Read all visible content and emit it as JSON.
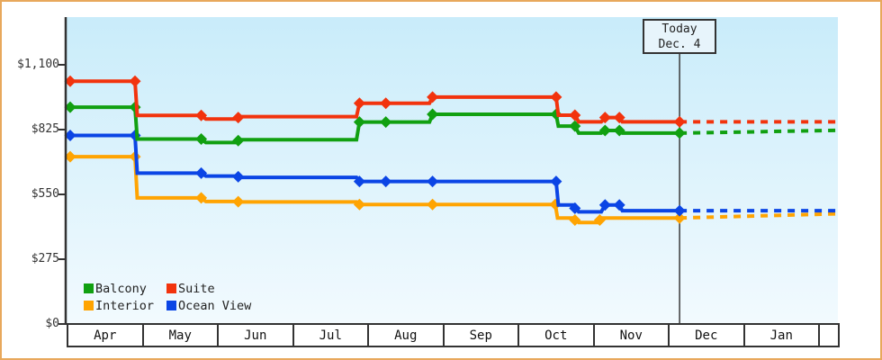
{
  "frame": {
    "border_color": "#E8A85C",
    "background": "#ffffff"
  },
  "today_box": {
    "line1": "Today",
    "line2": "Dec. 4"
  },
  "legend": {
    "items": [
      {
        "label": "Balcony",
        "color": "#11A011"
      },
      {
        "label": "Suite",
        "color": "#F2330D"
      },
      {
        "label": "Interior",
        "color": "#FFA402"
      },
      {
        "label": "Ocean View",
        "color": "#0B45E5"
      }
    ]
  },
  "chart_data": {
    "type": "line",
    "title": "",
    "x_unit": "months, 0 = start of Apr, 10 = end of Jan",
    "x_axis": {
      "months": [
        "Apr",
        "May",
        "Jun",
        "Jul",
        "Aug",
        "Sep",
        "Oct",
        "Nov",
        "Dec",
        "Jan"
      ]
    },
    "y_axis": {
      "range": [
        0,
        1100
      ],
      "ticks": [
        {
          "value": 0,
          "label": "$0"
        },
        {
          "value": 275,
          "label": "$275"
        },
        {
          "value": 550,
          "label": "$550"
        },
        {
          "value": 825,
          "label": "$825"
        },
        {
          "value": 1100,
          "label": "$1,100"
        }
      ]
    },
    "plot_background": {
      "top": "#c9ecfa",
      "bottom": "#f2fafe"
    },
    "axis_color": "#333333",
    "today_marker": {
      "label": "Today",
      "date": "Dec. 4",
      "month_position": 8.09,
      "line_color": "#3a3a3a"
    },
    "series": [
      {
        "name": "Interior",
        "color": "#FFA402",
        "points": [
          [
            0,
            710
          ],
          [
            0.86,
            710
          ],
          [
            0.89,
            535
          ],
          [
            1.74,
            535
          ],
          [
            1.8,
            520
          ],
          [
            2.23,
            520
          ],
          [
            2.26,
            518
          ],
          [
            3.8,
            518
          ],
          [
            3.84,
            507
          ],
          [
            6.44,
            507
          ],
          [
            6.47,
            450
          ],
          [
            6.7,
            450
          ],
          [
            6.75,
            431
          ],
          [
            7.03,
            431
          ],
          [
            7.06,
            450
          ],
          [
            8.09,
            450
          ]
        ],
        "markers": [
          [
            0,
            710
          ],
          [
            0.86,
            710
          ],
          [
            1.74,
            535
          ],
          [
            2.23,
            519
          ],
          [
            3.84,
            507
          ],
          [
            4.81,
            507
          ],
          [
            6.44,
            507
          ],
          [
            6.7,
            441
          ],
          [
            7.03,
            441
          ],
          [
            8.09,
            450
          ]
        ],
        "dash": [
          [
            8.09,
            450
          ],
          [
            10.2,
            468
          ]
        ]
      },
      {
        "name": "Ocean View",
        "color": "#0B45E5",
        "points": [
          [
            0,
            800
          ],
          [
            0.86,
            800
          ],
          [
            0.89,
            640
          ],
          [
            1.74,
            640
          ],
          [
            1.8,
            628
          ],
          [
            2.23,
            628
          ],
          [
            2.26,
            622
          ],
          [
            3.8,
            622
          ],
          [
            3.84,
            605
          ],
          [
            6.45,
            605
          ],
          [
            6.48,
            505
          ],
          [
            6.7,
            505
          ],
          [
            6.75,
            476
          ],
          [
            7.05,
            476
          ],
          [
            7.1,
            505
          ],
          [
            7.29,
            505
          ],
          [
            7.33,
            481
          ],
          [
            8.09,
            481
          ]
        ],
        "markers": [
          [
            0,
            800
          ],
          [
            0.86,
            800
          ],
          [
            1.74,
            640
          ],
          [
            2.23,
            625
          ],
          [
            3.84,
            605
          ],
          [
            4.19,
            605
          ],
          [
            4.81,
            605
          ],
          [
            6.45,
            605
          ],
          [
            6.7,
            491
          ],
          [
            7.1,
            505
          ],
          [
            7.29,
            505
          ],
          [
            8.09,
            481
          ]
        ],
        "dash": [
          [
            8.09,
            481
          ],
          [
            10.2,
            481
          ]
        ]
      },
      {
        "name": "Balcony",
        "color": "#11A011",
        "points": [
          [
            0,
            920
          ],
          [
            0.86,
            920
          ],
          [
            0.89,
            785
          ],
          [
            1.74,
            785
          ],
          [
            1.8,
            770
          ],
          [
            2.23,
            770
          ],
          [
            2.26,
            782
          ],
          [
            3.8,
            782
          ],
          [
            3.84,
            857
          ],
          [
            4.77,
            857
          ],
          [
            4.81,
            890
          ],
          [
            6.45,
            890
          ],
          [
            6.48,
            840
          ],
          [
            6.7,
            840
          ],
          [
            6.75,
            810
          ],
          [
            7.05,
            810
          ],
          [
            7.1,
            821
          ],
          [
            7.29,
            821
          ],
          [
            7.33,
            810
          ],
          [
            8.09,
            810
          ]
        ],
        "markers": [
          [
            0,
            920
          ],
          [
            0.86,
            920
          ],
          [
            1.74,
            785
          ],
          [
            2.23,
            778
          ],
          [
            3.84,
            857
          ],
          [
            4.19,
            857
          ],
          [
            4.81,
            890
          ],
          [
            6.45,
            890
          ],
          [
            6.7,
            840
          ],
          [
            7.1,
            821
          ],
          [
            7.29,
            821
          ],
          [
            8.09,
            810
          ]
        ],
        "dash": [
          [
            8.09,
            810
          ],
          [
            10.2,
            822
          ]
        ]
      },
      {
        "name": "Suite",
        "color": "#F2330D",
        "points": [
          [
            0,
            1030
          ],
          [
            0.86,
            1030
          ],
          [
            0.89,
            885
          ],
          [
            1.74,
            885
          ],
          [
            1.8,
            870
          ],
          [
            2.23,
            870
          ],
          [
            2.26,
            880
          ],
          [
            3.8,
            880
          ],
          [
            3.84,
            937
          ],
          [
            4.77,
            937
          ],
          [
            4.81,
            963
          ],
          [
            6.45,
            963
          ],
          [
            6.48,
            886
          ],
          [
            6.7,
            886
          ],
          [
            6.75,
            858
          ],
          [
            7.05,
            858
          ],
          [
            7.1,
            876
          ],
          [
            7.29,
            876
          ],
          [
            7.33,
            858
          ],
          [
            8.09,
            858
          ]
        ],
        "markers": [
          [
            0,
            1030
          ],
          [
            0.86,
            1030
          ],
          [
            1.74,
            885
          ],
          [
            2.23,
            876
          ],
          [
            3.84,
            937
          ],
          [
            4.19,
            937
          ],
          [
            4.81,
            963
          ],
          [
            6.45,
            963
          ],
          [
            6.7,
            886
          ],
          [
            7.1,
            876
          ],
          [
            7.29,
            876
          ],
          [
            8.09,
            858
          ]
        ],
        "dash": [
          [
            8.09,
            858
          ],
          [
            10.2,
            858
          ]
        ]
      }
    ]
  }
}
